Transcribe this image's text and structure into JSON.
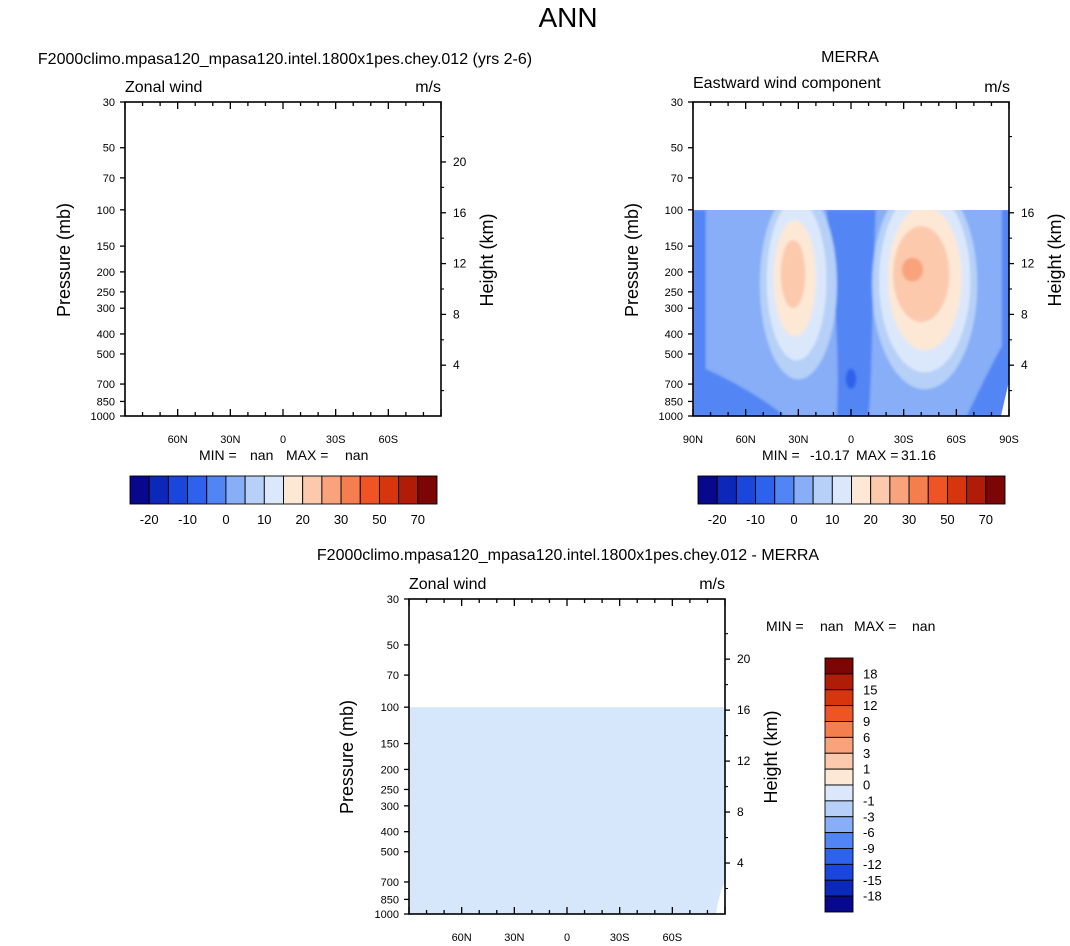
{
  "figure_title": "ANN",
  "chart_data": [
    {
      "id": "model",
      "type": "contour",
      "title": "F2000climo.mpasa120_mpasa120.intel.1800x1pes.chey.012 (yrs 2-6)",
      "left_label": "Zonal wind",
      "right_label": "m/s",
      "ylabel": "Pressure (mb)",
      "ylabel_right": "Height (km)",
      "yticks": [
        30,
        50,
        70,
        100,
        150,
        200,
        250,
        300,
        400,
        500,
        700,
        850,
        1000
      ],
      "height_ticks": [
        4,
        8,
        12,
        16,
        20
      ],
      "xticks": [
        "60N",
        "30N",
        "0",
        "30S",
        "60S"
      ],
      "stats": {
        "min_label": "MIN =",
        "min": "nan",
        "max_label": "MAX =",
        "max": "nan"
      },
      "colorbar": {
        "labels": [
          "-20",
          "-10",
          "0",
          "10",
          "20",
          "30",
          "50",
          "70"
        ],
        "colors": [
          "#08088c",
          "#0c28b8",
          "#1a46dc",
          "#2e62ec",
          "#5285f4",
          "#87aef6",
          "#b6d0f8",
          "#dbe8fb",
          "#fde8d6",
          "#fcc9ad",
          "#f9a37c",
          "#f57e4e",
          "#ee5424",
          "#d6350e",
          "#b01c08",
          "#7c0606"
        ]
      },
      "data_note": "all values missing (nan)"
    },
    {
      "id": "obs",
      "type": "contour",
      "title": "MERRA",
      "left_label": "Eastward wind component",
      "right_label": "m/s",
      "ylabel": "Pressure (mb)",
      "ylabel_right": "Height (km)",
      "yticks": [
        30,
        50,
        70,
        100,
        150,
        200,
        250,
        300,
        400,
        500,
        700,
        850,
        1000
      ],
      "height_ticks": [
        4,
        8,
        12,
        16
      ],
      "xticks": [
        "90N",
        "60N",
        "30N",
        "0",
        "30S",
        "60S",
        "90S"
      ],
      "stats": {
        "min_label": "MIN =",
        "min": "-10.17",
        "max_label": "MAX =",
        "max": "31.16"
      },
      "colorbar": {
        "labels": [
          "-20",
          "-10",
          "0",
          "10",
          "20",
          "30",
          "50",
          "70"
        ],
        "colors": [
          "#08088c",
          "#0c28b8",
          "#1a46dc",
          "#2e62ec",
          "#5285f4",
          "#87aef6",
          "#b6d0f8",
          "#dbe8fb",
          "#fde8d6",
          "#fcc9ad",
          "#f9a37c",
          "#f57e4e",
          "#ee5424",
          "#d6350e",
          "#b01c08",
          "#7c0606"
        ]
      },
      "data_top_mb": 100,
      "jets": [
        {
          "name": "northern jet",
          "lat": 30,
          "core_mb": 200,
          "max": 30
        },
        {
          "name": "southern jet",
          "lat": -40,
          "core_mb": 200,
          "max": 31.16
        }
      ]
    },
    {
      "id": "diff",
      "type": "contour",
      "title": "F2000climo.mpasa120_mpasa120.intel.1800x1pes.chey.012 - MERRA",
      "left_label": "Zonal wind",
      "right_label": "m/s",
      "ylabel": "Pressure (mb)",
      "ylabel_right": "Height (km)",
      "yticks": [
        30,
        50,
        70,
        100,
        150,
        200,
        250,
        300,
        400,
        500,
        700,
        850,
        1000
      ],
      "height_ticks": [
        4,
        8,
        12,
        16,
        20
      ],
      "xticks": [
        "60N",
        "30N",
        "0",
        "30S",
        "60S"
      ],
      "stats": {
        "min_label": "MIN =",
        "min": "nan",
        "max_label": "MAX =",
        "max": "nan"
      },
      "colorbar": {
        "labels": [
          "18",
          "15",
          "12",
          "9",
          "6",
          "3",
          "1",
          "0",
          "-1",
          "-3",
          "-6",
          "-9",
          "-12",
          "-15",
          "-18"
        ],
        "colors": [
          "#7c0606",
          "#b01c08",
          "#d6350e",
          "#ee5424",
          "#f57e4e",
          "#f9a37c",
          "#fcc9ad",
          "#fde8d6",
          "#dbe8fb",
          "#b6d0f8",
          "#87aef6",
          "#5285f4",
          "#2e62ec",
          "#1a46dc",
          "#0c28b8",
          "#08088c"
        ]
      },
      "data_top_mb": 100,
      "fill_color": "#d6e6fb"
    }
  ]
}
